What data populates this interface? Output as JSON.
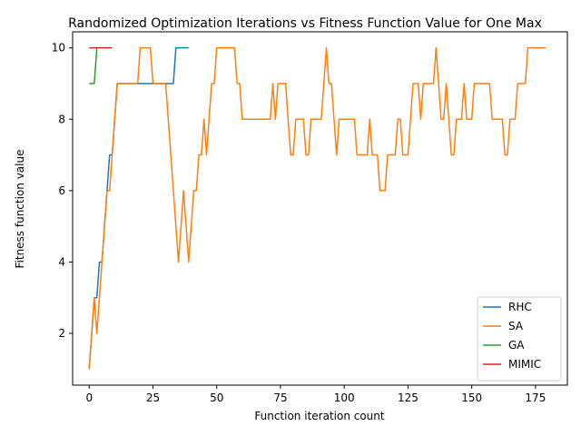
{
  "chart_data": {
    "type": "line",
    "title": "Randomized Optimization Iterations vs Fitness Function Value for One Max",
    "xlabel": "Function iteration count",
    "ylabel": "Fitness function value",
    "xlim": [
      -6.5,
      187.5
    ],
    "ylim": [
      0.55,
      10.45
    ],
    "xticks": [
      0,
      25,
      50,
      75,
      100,
      125,
      150,
      175
    ],
    "yticks": [
      2,
      4,
      6,
      8,
      10
    ],
    "grid": false,
    "legend_position": "lower-right",
    "series": [
      {
        "name": "RHC",
        "color": "#1f77b4",
        "x": [
          0,
          1,
          2,
          3,
          4,
          5,
          6,
          7,
          8,
          9,
          10,
          11,
          12,
          13,
          14,
          15,
          16,
          17,
          18,
          19,
          20,
          21,
          22,
          23,
          24,
          25,
          26,
          27,
          28,
          29,
          30,
          31,
          32,
          33,
          34,
          35,
          36,
          37,
          38,
          39
        ],
        "y": [
          1,
          2,
          3,
          3,
          4,
          4,
          5,
          6,
          7,
          7,
          8,
          9,
          9,
          9,
          9,
          9,
          9,
          9,
          9,
          9,
          9,
          9,
          9,
          9,
          9,
          9,
          9,
          9,
          9,
          9,
          9,
          9,
          9,
          9,
          10,
          10,
          10,
          10,
          10,
          10
        ]
      },
      {
        "name": "SA",
        "color": "#ff7f0e",
        "x": [
          0,
          1,
          2,
          3,
          4,
          5,
          6,
          7,
          8,
          9,
          10,
          11,
          12,
          13,
          14,
          15,
          16,
          17,
          18,
          19,
          20,
          21,
          22,
          23,
          24,
          25,
          26,
          27,
          28,
          29,
          30,
          31,
          32,
          33,
          34,
          35,
          36,
          37,
          38,
          39,
          40,
          41,
          42,
          43,
          44,
          45,
          46,
          47,
          48,
          49,
          50,
          51,
          52,
          53,
          54,
          55,
          56,
          57,
          58,
          59,
          60,
          61,
          62,
          63,
          64,
          65,
          66,
          67,
          68,
          69,
          70,
          71,
          72,
          73,
          74,
          75,
          76,
          77,
          78,
          79,
          80,
          81,
          82,
          83,
          84,
          85,
          86,
          87,
          88,
          89,
          90,
          91,
          92,
          93,
          94,
          95,
          96,
          97,
          98,
          99,
          100,
          101,
          102,
          103,
          104,
          105,
          106,
          107,
          108,
          109,
          110,
          111,
          112,
          113,
          114,
          115,
          116,
          117,
          118,
          119,
          120,
          121,
          122,
          123,
          124,
          125,
          126,
          127,
          128,
          129,
          130,
          131,
          132,
          133,
          134,
          135,
          136,
          137,
          138,
          139,
          140,
          141,
          142,
          143,
          144,
          145,
          146,
          147,
          148,
          149,
          150,
          151,
          152,
          153,
          154,
          155,
          156,
          157,
          158,
          159,
          160,
          161,
          162,
          163,
          164,
          165,
          166,
          167,
          168,
          169,
          170,
          171,
          172,
          173,
          174,
          175,
          176,
          177,
          178,
          179
        ],
        "y": [
          1,
          2,
          3,
          2,
          3,
          4,
          5,
          6,
          6,
          7,
          8,
          9,
          9,
          9,
          9,
          9,
          9,
          9,
          9,
          9,
          10,
          10,
          10,
          10,
          10,
          9,
          9,
          9,
          9,
          9,
          9,
          8,
          7,
          6,
          5,
          4,
          5,
          6,
          5,
          4,
          5,
          6,
          6,
          7,
          7,
          8,
          7,
          8,
          9,
          9,
          10,
          10,
          10,
          10,
          10,
          10,
          10,
          10,
          9,
          9,
          8,
          8,
          8,
          8,
          8,
          8,
          8,
          8,
          8,
          8,
          8,
          8,
          9,
          8,
          9,
          9,
          9,
          9,
          8,
          7,
          7,
          8,
          8,
          8,
          8,
          7,
          7,
          8,
          8,
          8,
          8,
          8,
          9,
          10,
          9,
          9,
          8,
          7,
          8,
          8,
          8,
          8,
          8,
          8,
          8,
          7,
          7,
          7,
          7,
          7,
          8,
          7,
          7,
          7,
          6,
          6,
          6,
          7,
          7,
          7,
          7,
          8,
          8,
          7,
          7,
          7,
          8,
          9,
          9,
          9,
          8,
          9,
          9,
          9,
          9,
          9,
          10,
          9,
          8,
          8,
          9,
          8,
          7,
          7,
          8,
          8,
          8,
          9,
          8,
          8,
          8,
          9,
          9,
          9,
          9,
          9,
          9,
          9,
          8,
          8,
          8,
          8,
          8,
          7,
          7,
          8,
          8,
          8,
          9,
          9,
          9,
          9,
          10,
          10,
          10,
          10,
          10,
          10,
          10,
          10
        ]
      },
      {
        "name": "GA",
        "color": "#2ca02c",
        "x": [
          0,
          1,
          2,
          3
        ],
        "y": [
          9,
          9,
          9,
          10
        ]
      },
      {
        "name": "MIMIC",
        "color": "#d62728",
        "x": [
          0,
          1,
          2,
          3,
          4,
          5,
          6,
          7,
          8,
          9
        ],
        "y": [
          10,
          10,
          10,
          10,
          10,
          10,
          10,
          10,
          10,
          10
        ]
      }
    ]
  }
}
